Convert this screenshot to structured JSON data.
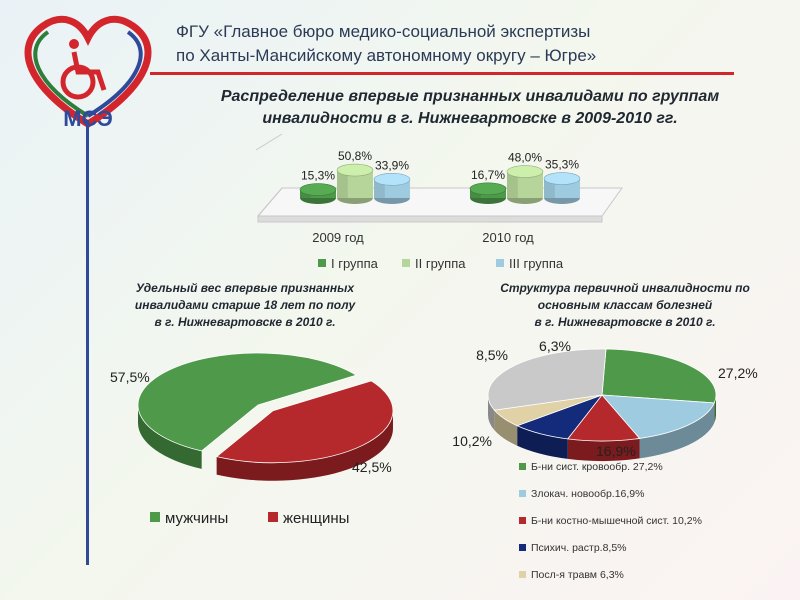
{
  "header": {
    "org_line1": "ФГУ «Главное бюро медико-социальной экспертизы",
    "org_line2": "по Ханты-Мансийскому автономному округу – Югре»",
    "logo_text": "МСЭ",
    "main_title_line1": "Распределение впервые признанных инвалидами по группам",
    "main_title_line2": "инвалидности в г. Нижневартовске в 2009-2010 гг."
  },
  "left_title": {
    "line1": "Удельный вес впервые признанных",
    "line2": "инвалидами старше 18 лет по полу",
    "line3": "в г. Нижневартовске в 2010 г."
  },
  "right_title": {
    "line1": "Структура первичной инвалидности по",
    "line2": "основным классам болезней",
    "line3": "в г. Нижневартовске в 2010 г."
  },
  "colors": {
    "green": "#4e9a4a",
    "lightgreen": "#b6d59a",
    "lightblue": "#9fcbe0",
    "red": "#b5282c",
    "navy": "#142a7a",
    "beige": "#e0d2a6",
    "brandred": "#d3262c",
    "brandblue": "#2f4a9a"
  },
  "chart_data": [
    {
      "type": "bar",
      "categories": [
        "2009 год",
        "2010 год"
      ],
      "series": [
        {
          "name": "I группа",
          "values": [
            15.3,
            16.7
          ],
          "labels": [
            "15,3%",
            "16,7%"
          ]
        },
        {
          "name": "II группа",
          "values": [
            50.8,
            48.0
          ],
          "labels": [
            "50,8%",
            "48,0%"
          ]
        },
        {
          "name": "III группа",
          "values": [
            33.9,
            35.3
          ],
          "labels": [
            "33,9%",
            "35,3%"
          ]
        }
      ],
      "legend_position": "bottom"
    },
    {
      "type": "pie",
      "slices": [
        {
          "name": "мужчины",
          "value": 57.5,
          "label": "57,5%"
        },
        {
          "name": "женщины",
          "value": 42.5,
          "label": "42,5%"
        }
      ],
      "legend_position": "bottom"
    },
    {
      "type": "pie",
      "slices": [
        {
          "name": "Б-ни сист. кровообр. 27,2%",
          "value": 27.2,
          "label": "27,2%"
        },
        {
          "name": "Злокач. новообр.16,9%",
          "value": 16.9,
          "label": "16,9%"
        },
        {
          "name": "Б-ни костно-мышечной сист. 10,2%",
          "value": 10.2,
          "label": "10,2%"
        },
        {
          "name": "Психич. растр.8,5%",
          "value": 8.5,
          "label": "8,5%"
        },
        {
          "name": "Посл-я травм 6,3%",
          "value": 6.3,
          "label": "6,3%"
        }
      ],
      "legend_position": "bottom"
    }
  ]
}
